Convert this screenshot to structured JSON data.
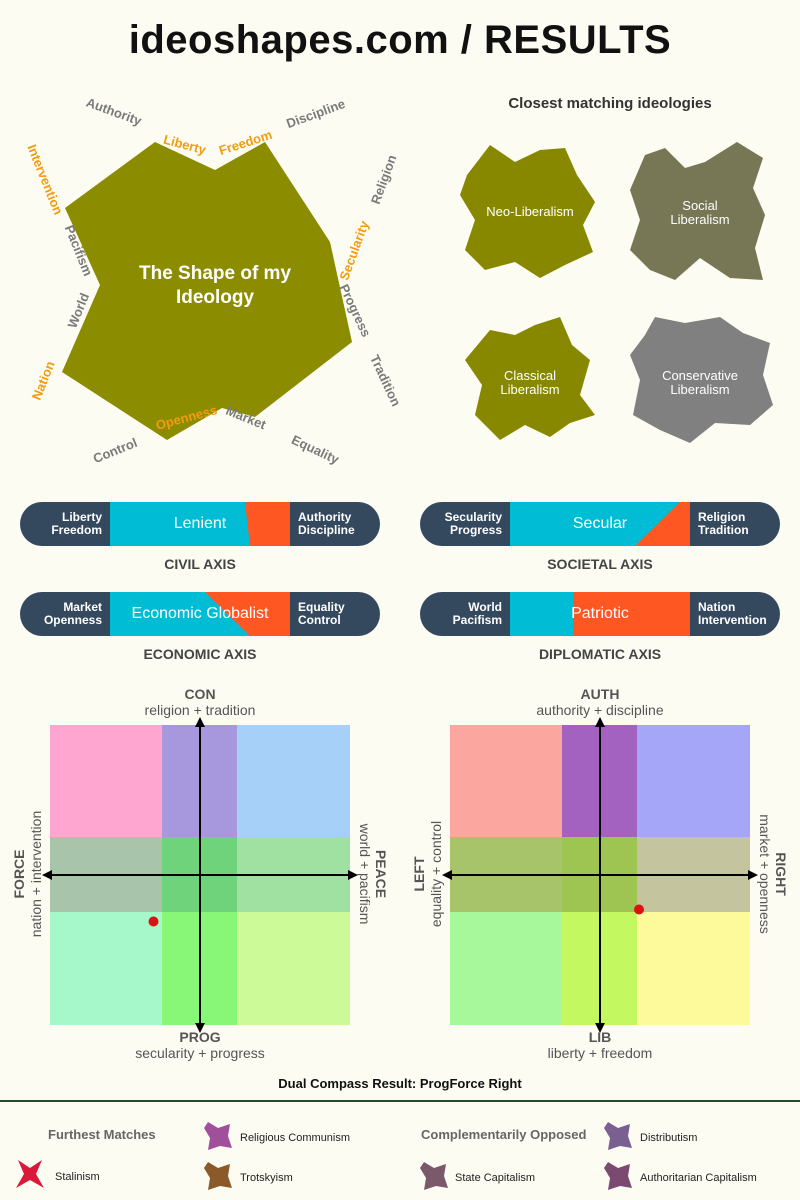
{
  "header": {
    "title": "ideoshapes.com / RESULTS"
  },
  "shape": {
    "center_title_line1": "The Shape of my",
    "center_title_line2": "Ideology",
    "fill_color": "#8c8c00",
    "highlight_color": "#f29c11",
    "labels": {
      "authority": "Authority",
      "liberty": "Liberty",
      "freedom": "Freedom",
      "discipline": "Discipline",
      "religion": "Religion",
      "secularity": "Secularity",
      "progress": "Progress",
      "tradition": "Tradition",
      "equality": "Equality",
      "market": "Market",
      "openness": "Openness",
      "control": "Control",
      "nation": "Nation",
      "world": "World",
      "pacifism": "Pacifism",
      "intervention": "Intervention"
    }
  },
  "closest": {
    "title": "Closest matching ideologies",
    "items": [
      {
        "line1": "Neo-Liberalism",
        "line2": "",
        "color": "#888800"
      },
      {
        "line1": "Social",
        "line2": "Liberalism",
        "color": "#777755"
      },
      {
        "line1": "Classical",
        "line2": "Liberalism",
        "color": "#888800"
      },
      {
        "line1": "Conservative",
        "line2": "Liberalism",
        "color": "#808080"
      }
    ]
  },
  "axes": {
    "civil": {
      "name": "CIVIL AXIS",
      "left1": "Liberty",
      "left2": "Freedom",
      "right1": "Authority",
      "right2": "Discipline",
      "center": "Lenient",
      "blue_fraction": 0.55
    },
    "societal": {
      "name": "SOCIETAL AXIS",
      "left1": "Secularity",
      "left2": "Progress",
      "right1": "Religion",
      "right2": "Tradition",
      "center": "Secular",
      "blue_fraction": 0.65
    },
    "economic": {
      "name": "ECONOMIC AXIS",
      "left1": "Market",
      "left2": "Openness",
      "right1": "Equality",
      "right2": "Control",
      "center": "Economic Globalist",
      "blue_fraction": 0.6
    },
    "diplomatic": {
      "name": "DIPLOMATIC AXIS",
      "left1": "World",
      "left2": "Pacifism",
      "right1": "Nation",
      "right2": "Intervention",
      "center": "Patriotic",
      "blue_fraction": 0.35
    }
  },
  "colors": {
    "dark": "#34495e",
    "blue": "#00bcd4",
    "orange": "#ff5722",
    "dot": "#dd1111"
  },
  "compass_left": {
    "top": "CON",
    "top_sub": "religion + tradition",
    "bottom": "PROG",
    "bottom_sub": "secularity + progress",
    "left": "FORCE",
    "left_sub": "nation + intervention",
    "right": "PEACE",
    "right_sub": "world + pacifism",
    "dot": {
      "x": -0.31,
      "y": -0.31
    }
  },
  "compass_right": {
    "top": "AUTH",
    "top_sub": "authority + discipline",
    "bottom": "LIB",
    "bottom_sub": "liberty + freedom",
    "left": "LEFT",
    "left_sub": "equality + control",
    "right": "RIGHT",
    "right_sub": "market + openness",
    "dot": {
      "x": 0.26,
      "y": -0.23
    }
  },
  "dual_result": "Dual Compass Result: ProgForce Right",
  "footer": {
    "furthest_title": "Furthest Matches",
    "opposed_title": "Complementarily Opposed",
    "furthest": [
      {
        "name": "Stalinism",
        "color": "#d8193a"
      },
      {
        "name": "Religious Communism",
        "color": "#a0509a"
      },
      {
        "name": "Trotskyism",
        "color": "#8b5a2b"
      }
    ],
    "opposed": [
      {
        "name": "State Capitalism",
        "color": "#7a5a6a"
      },
      {
        "name": "Distributism",
        "color": "#7a6090"
      },
      {
        "name": "Authoritarian Capitalism",
        "color": "#7a4a70"
      }
    ]
  }
}
